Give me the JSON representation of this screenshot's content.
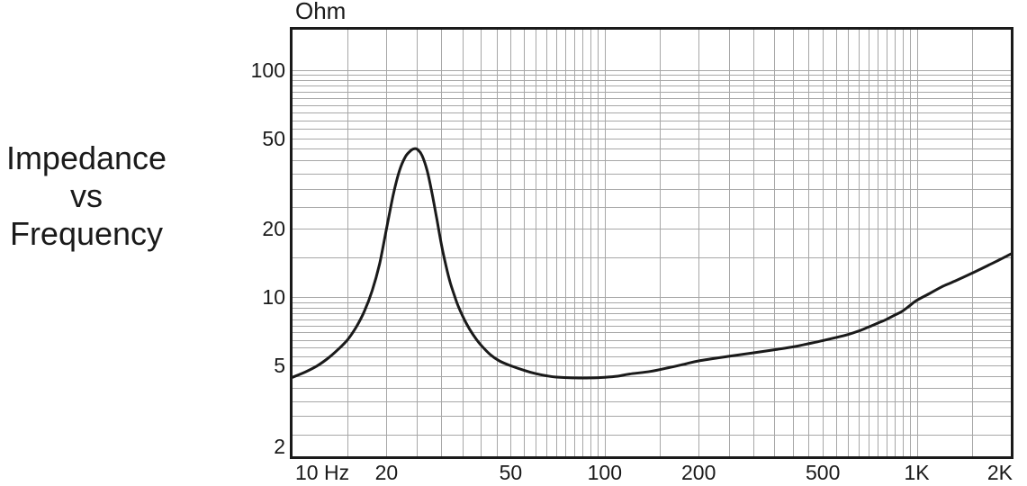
{
  "title": {
    "line1": "Impedance",
    "line2": "vs",
    "line3": "Frequency"
  },
  "y_axis": {
    "unit_label": "Ohm"
  },
  "colors": {
    "curve": "#1a1a1a",
    "border": "#1a1a1a",
    "grid": "#a7a7a7",
    "text": "#1a1a1a",
    "background": "#ffffff"
  },
  "grid": {
    "x_lines": [
      15,
      20,
      25,
      30,
      35,
      40,
      45,
      50,
      55,
      60,
      65,
      70,
      75,
      80,
      85,
      90,
      95,
      100,
      150,
      200,
      250,
      300,
      350,
      400,
      450,
      500,
      550,
      600,
      650,
      700,
      750,
      800,
      850,
      900,
      950,
      1000,
      1500
    ],
    "y_lines": [
      2.5,
      3,
      3.5,
      4,
      4.5,
      5,
      5.5,
      6,
      6.5,
      7,
      7.5,
      8,
      8.5,
      9,
      9.5,
      10,
      15,
      20,
      25,
      30,
      35,
      40,
      45,
      50,
      55,
      60,
      65,
      70,
      75,
      80,
      85,
      90,
      95,
      100
    ]
  },
  "chart_data": {
    "type": "line",
    "title": "Impedance vs Frequency",
    "y_unit": "Ohm",
    "x_unit": "Hz",
    "x_scale": "log",
    "y_scale": "log",
    "xlim": [
      10,
      2000
    ],
    "ylim": [
      2,
      150
    ],
    "grid": true,
    "legend": "none",
    "x_ticks": [
      {
        "label": "10 Hz",
        "value": 10,
        "align": "left"
      },
      {
        "label": "20",
        "value": 20,
        "align": "center"
      },
      {
        "label": "50",
        "value": 50,
        "align": "center"
      },
      {
        "label": "100",
        "value": 100,
        "align": "center"
      },
      {
        "label": "200",
        "value": 200,
        "align": "center"
      },
      {
        "label": "500",
        "value": 500,
        "align": "center"
      },
      {
        "label": "1K",
        "value": 1000,
        "align": "center"
      },
      {
        "label": "2K",
        "value": 2000,
        "align": "right"
      }
    ],
    "y_ticks": [
      {
        "label": "100",
        "value": 100
      },
      {
        "label": "50",
        "value": 50
      },
      {
        "label": "20",
        "value": 20
      },
      {
        "label": "10",
        "value": 10
      },
      {
        "label": "5",
        "value": 5
      },
      {
        "label": "2",
        "value": 2
      }
    ],
    "series": [
      {
        "name": "impedance",
        "points": [
          [
            10,
            4.45
          ],
          [
            11,
            4.7
          ],
          [
            12,
            5.0
          ],
          [
            13,
            5.4
          ],
          [
            14,
            5.9
          ],
          [
            15,
            6.5
          ],
          [
            16,
            7.4
          ],
          [
            17,
            8.7
          ],
          [
            18,
            10.7
          ],
          [
            19,
            14
          ],
          [
            20,
            20
          ],
          [
            21,
            28
          ],
          [
            22,
            36
          ],
          [
            23,
            41.5
          ],
          [
            24,
            44.3
          ],
          [
            24.6,
            45
          ],
          [
            25.2,
            44.5
          ],
          [
            26,
            42
          ],
          [
            27,
            36
          ],
          [
            28,
            28.5
          ],
          [
            29,
            22
          ],
          [
            30,
            17
          ],
          [
            31,
            13.8
          ],
          [
            32,
            11.6
          ],
          [
            33,
            10.2
          ],
          [
            34,
            9.1
          ],
          [
            36,
            7.7
          ],
          [
            38,
            6.8
          ],
          [
            40,
            6.2
          ],
          [
            43,
            5.6
          ],
          [
            46,
            5.25
          ],
          [
            50,
            5.0
          ],
          [
            55,
            4.78
          ],
          [
            60,
            4.62
          ],
          [
            65,
            4.52
          ],
          [
            70,
            4.46
          ],
          [
            80,
            4.42
          ],
          [
            90,
            4.42
          ],
          [
            100,
            4.45
          ],
          [
            110,
            4.5
          ],
          [
            120,
            4.6
          ],
          [
            140,
            4.72
          ],
          [
            160,
            4.9
          ],
          [
            180,
            5.08
          ],
          [
            200,
            5.25
          ],
          [
            250,
            5.5
          ],
          [
            300,
            5.7
          ],
          [
            350,
            5.88
          ],
          [
            400,
            6.05
          ],
          [
            450,
            6.25
          ],
          [
            500,
            6.45
          ],
          [
            550,
            6.65
          ],
          [
            600,
            6.85
          ],
          [
            650,
            7.1
          ],
          [
            700,
            7.4
          ],
          [
            750,
            7.7
          ],
          [
            800,
            8.0
          ],
          [
            850,
            8.35
          ],
          [
            900,
            8.7
          ],
          [
            950,
            9.2
          ],
          [
            1000,
            9.7
          ],
          [
            1100,
            10.4
          ],
          [
            1200,
            11.1
          ],
          [
            1300,
            11.65
          ],
          [
            1400,
            12.2
          ],
          [
            1500,
            12.75
          ],
          [
            1600,
            13.3
          ],
          [
            1700,
            13.85
          ],
          [
            1800,
            14.4
          ],
          [
            1900,
            14.95
          ],
          [
            2000,
            15.5
          ]
        ]
      }
    ]
  }
}
